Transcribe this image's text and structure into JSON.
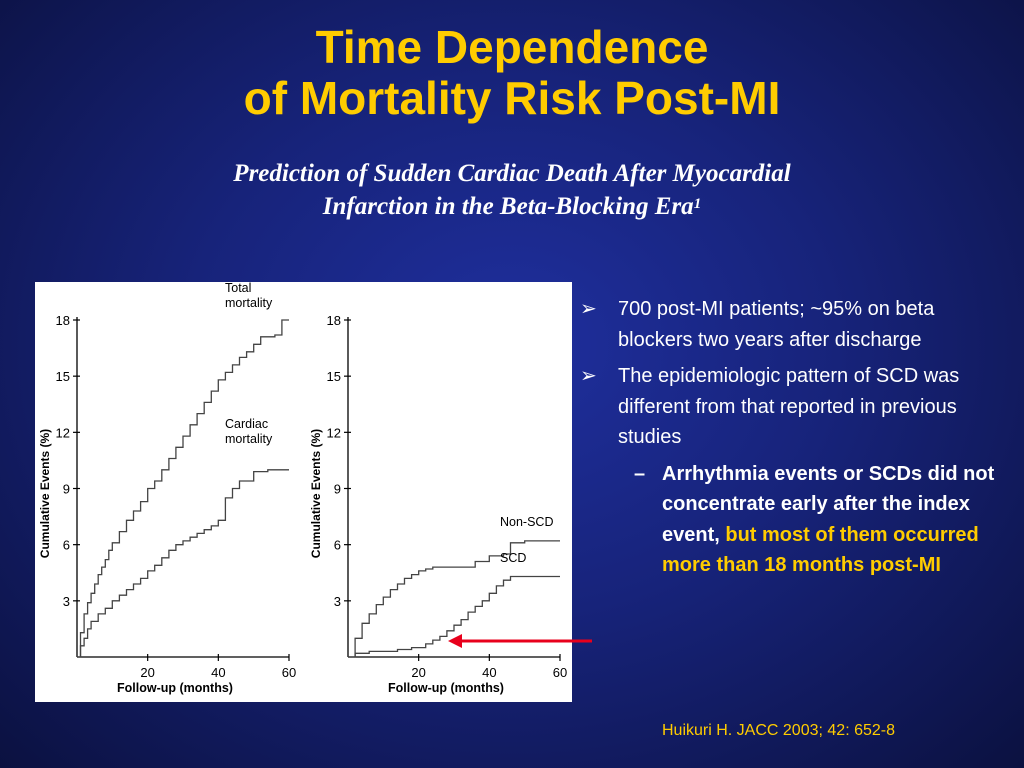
{
  "title": {
    "line1": "Time Dependence",
    "line2": "of Mortality Risk Post-MI"
  },
  "subtitle": {
    "line1": "Prediction of Sudden Cardiac Death After Myocardial",
    "line2": "Infarction in the Beta-Blocking Era",
    "superscript": "1"
  },
  "bullets": [
    {
      "marker": "➢",
      "text": "700 post-MI patients;  ~95% on beta blockers two years after discharge"
    },
    {
      "marker": "➢",
      "text": "The epidemiologic pattern of SCD was different from that reported in previous studies"
    }
  ],
  "sub_bullet": {
    "marker": "–",
    "text_white": "Arrhythmia events or SCDs did not concentrate early after the index event,",
    "text_yellow": "but most of them occurred more than 18 months post-MI"
  },
  "citation": "Huikuri H.  JACC 2003; 42: 652-8",
  "colors": {
    "title": "#ffcc00",
    "background": "#17237a",
    "arrow": "#e8001c",
    "highlight": "#ffcc00"
  },
  "arrow_icon": "left-arrow",
  "chart_data": [
    {
      "type": "line",
      "step": true,
      "ylabel": "Cumulative Events (%)",
      "xlabel": "Follow-up (months)",
      "xlim": [
        0,
        60
      ],
      "ylim": [
        0,
        18
      ],
      "xticks": [
        20,
        40,
        60
      ],
      "yticks": [
        3,
        6,
        9,
        12,
        15,
        18
      ],
      "series": [
        {
          "name": "Total mortality",
          "x": [
            0,
            1,
            2,
            3,
            4,
            5,
            6,
            7,
            8,
            9,
            10,
            12,
            14,
            16,
            18,
            20,
            22,
            24,
            26,
            28,
            30,
            32,
            34,
            36,
            38,
            40,
            42,
            44,
            46,
            48,
            50,
            52,
            56,
            58,
            60
          ],
          "y": [
            0,
            1.3,
            2.3,
            2.9,
            3.4,
            3.9,
            4.4,
            4.8,
            5.2,
            5.7,
            6.1,
            6.7,
            7.3,
            7.8,
            8.3,
            9.0,
            9.4,
            10.0,
            10.6,
            11.2,
            11.8,
            12.4,
            13.0,
            13.6,
            14.2,
            14.8,
            15.2,
            15.6,
            16.0,
            16.3,
            16.7,
            17.1,
            17.2,
            18.0,
            18.0
          ]
        },
        {
          "name": "Cardiac mortality",
          "x": [
            0,
            1,
            2,
            3,
            4,
            6,
            8,
            10,
            12,
            14,
            16,
            18,
            20,
            22,
            24,
            26,
            28,
            30,
            32,
            34,
            36,
            38,
            40,
            42,
            44,
            46,
            50,
            54,
            58,
            60
          ],
          "y": [
            0,
            0.6,
            1.0,
            1.5,
            1.9,
            2.3,
            2.6,
            3.0,
            3.3,
            3.6,
            3.9,
            4.2,
            4.6,
            4.9,
            5.3,
            5.7,
            6.0,
            6.2,
            6.4,
            6.6,
            6.8,
            7.0,
            7.3,
            8.5,
            9.0,
            9.4,
            9.9,
            10.0,
            10.0,
            10.0
          ]
        }
      ]
    },
    {
      "type": "line",
      "step": true,
      "ylabel": "Cumulative Events (%)",
      "xlabel": "Follow-up (months)",
      "xlim": [
        0,
        60
      ],
      "ylim": [
        0,
        18
      ],
      "xticks": [
        20,
        40,
        60
      ],
      "yticks": [
        3,
        6,
        9,
        12,
        15,
        18
      ],
      "series": [
        {
          "name": "Non-SCD",
          "x": [
            0,
            2,
            4,
            6,
            8,
            10,
            12,
            14,
            16,
            18,
            20,
            22,
            24,
            28,
            32,
            36,
            40,
            44,
            46,
            50,
            54,
            58,
            60
          ],
          "y": [
            0,
            1.0,
            1.8,
            2.3,
            2.8,
            3.2,
            3.6,
            3.9,
            4.2,
            4.4,
            4.6,
            4.7,
            4.8,
            4.8,
            4.8,
            5.1,
            5.4,
            5.5,
            6.1,
            6.2,
            6.2,
            6.2,
            6.2
          ]
        },
        {
          "name": "SCD",
          "x": [
            0,
            2,
            6,
            10,
            14,
            18,
            22,
            24,
            26,
            28,
            30,
            32,
            34,
            36,
            38,
            40,
            42,
            44,
            46,
            50,
            54,
            58,
            60
          ],
          "y": [
            0,
            0.2,
            0.3,
            0.3,
            0.4,
            0.5,
            0.7,
            0.9,
            1.1,
            1.4,
            1.7,
            2.0,
            2.4,
            2.7,
            3.0,
            3.4,
            3.8,
            4.1,
            4.3,
            4.3,
            4.3,
            4.3,
            4.3
          ]
        }
      ]
    }
  ]
}
